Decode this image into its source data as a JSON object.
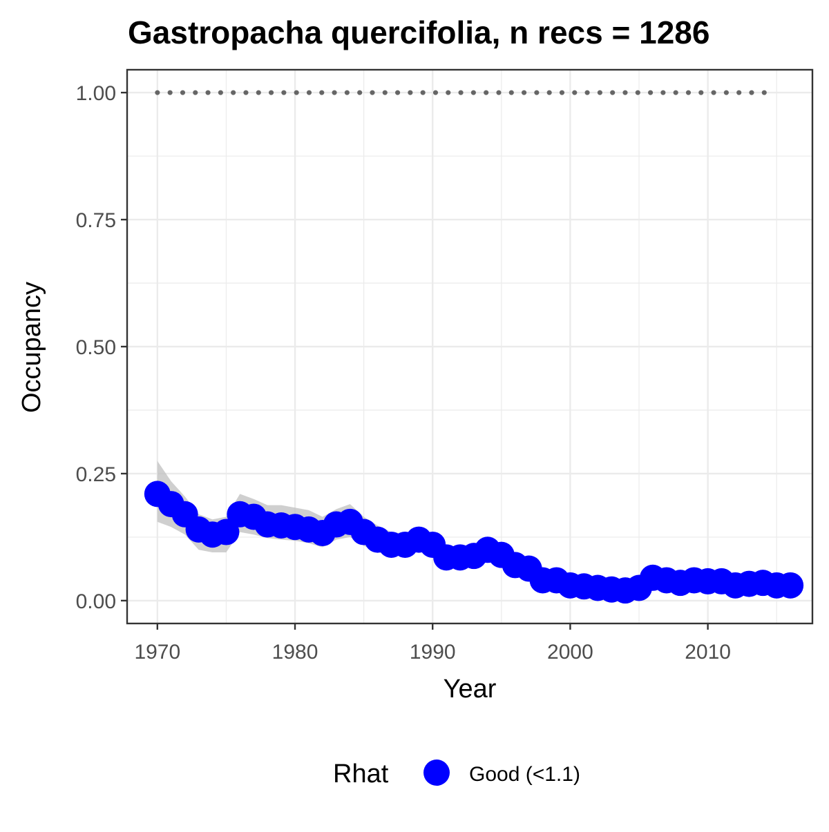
{
  "chart_data": {
    "type": "line",
    "title": "Gastropacha quercifolia, n recs = 1286",
    "xlabel": "Year",
    "ylabel": "Occupancy",
    "xlim": [
      1967.8,
      2017.6
    ],
    "ylim": [
      -0.045,
      1.045
    ],
    "x_ticks": [
      1970,
      1980,
      1990,
      2000,
      2010
    ],
    "x_tick_labels": [
      "1970",
      "1980",
      "1990",
      "2000",
      "2010"
    ],
    "y_ticks": [
      0,
      0.25,
      0.5,
      0.75,
      1.0
    ],
    "y_tick_labels": [
      "0.00",
      "0.25",
      "0.50",
      "0.75",
      "1.00"
    ],
    "grid": true,
    "legend": {
      "title": "Rhat",
      "position": "bottom",
      "entries": [
        {
          "label": "Good (<1.1)",
          "color": "#0000ff"
        }
      ]
    },
    "colors": {
      "points": "#0000ff",
      "ribbon": "#bfbfbf",
      "reference_line": "#666666",
      "grid": "#ebebeb",
      "panel_border": "#333333",
      "tick_label": "#4d4d4d"
    },
    "reference_line": {
      "y": 1.0,
      "style": "dotted",
      "x_range": [
        1970,
        2015
      ]
    },
    "series": [
      {
        "x": [
          1970,
          1971,
          1972,
          1973,
          1974,
          1975,
          1976,
          1977,
          1978,
          1979,
          1980,
          1981,
          1982,
          1983,
          1984,
          1985,
          1986,
          1987,
          1988,
          1989,
          1990,
          1991,
          1992,
          1993,
          1994,
          1995,
          1996,
          1997,
          1998,
          1999,
          2000,
          2001,
          2002,
          2003,
          2004,
          2005,
          2006,
          2007,
          2008,
          2009,
          2010,
          2011,
          2012,
          2013,
          2014,
          2015,
          2016
        ],
        "values": [
          0.21,
          0.19,
          0.17,
          0.14,
          0.13,
          0.135,
          0.17,
          0.165,
          0.15,
          0.148,
          0.145,
          0.14,
          0.133,
          0.15,
          0.155,
          0.135,
          0.12,
          0.11,
          0.11,
          0.12,
          0.11,
          0.085,
          0.085,
          0.088,
          0.1,
          0.09,
          0.07,
          0.063,
          0.04,
          0.04,
          0.03,
          0.028,
          0.025,
          0.022,
          0.02,
          0.025,
          0.045,
          0.04,
          0.035,
          0.04,
          0.038,
          0.038,
          0.03,
          0.033,
          0.035,
          0.03,
          0.03
        ],
        "lower": [
          0.155,
          0.145,
          0.13,
          0.1,
          0.095,
          0.095,
          0.135,
          0.13,
          0.123,
          0.12,
          0.118,
          0.113,
          0.105,
          0.12,
          0.125,
          0.108,
          0.095,
          0.09,
          0.09,
          0.098,
          0.09,
          0.07,
          0.072,
          0.075,
          0.085,
          0.075,
          0.058,
          0.05,
          0.032,
          0.03,
          0.023,
          0.02,
          0.018,
          0.016,
          0.014,
          0.018,
          0.035,
          0.032,
          0.028,
          0.032,
          0.03,
          0.03,
          0.023,
          0.026,
          0.027,
          0.023,
          0.022
        ],
        "upper": [
          0.275,
          0.235,
          0.205,
          0.17,
          0.16,
          0.165,
          0.21,
          0.2,
          0.188,
          0.188,
          0.183,
          0.178,
          0.165,
          0.18,
          0.19,
          0.165,
          0.148,
          0.135,
          0.132,
          0.142,
          0.13,
          0.1,
          0.098,
          0.1,
          0.115,
          0.105,
          0.083,
          0.075,
          0.05,
          0.05,
          0.038,
          0.035,
          0.032,
          0.028,
          0.027,
          0.033,
          0.055,
          0.05,
          0.043,
          0.05,
          0.046,
          0.046,
          0.038,
          0.041,
          0.043,
          0.038,
          0.038
        ]
      }
    ]
  }
}
